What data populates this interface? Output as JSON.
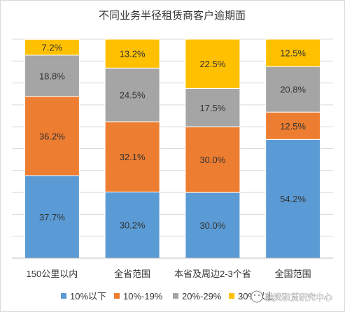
{
  "chart_data": {
    "type": "bar",
    "stacked": true,
    "title": "不同业务半径租赁商客户逾期面",
    "categories": [
      "150公里以内",
      "全省范围",
      "本省及周边2-3个省",
      "全国范围"
    ],
    "series": [
      {
        "name": "10%以下",
        "color": "#5b9bd5",
        "values": [
          37.7,
          30.2,
          30.0,
          54.2
        ]
      },
      {
        "name": "10%-19%",
        "color": "#ed7d31",
        "values": [
          36.2,
          32.1,
          30.0,
          12.5
        ]
      },
      {
        "name": "20%-29%",
        "color": "#a5a5a5",
        "values": [
          18.8,
          24.5,
          17.5,
          20.8
        ]
      },
      {
        "name": "30%以上",
        "color": "#ffc000",
        "values": [
          7.2,
          13.2,
          22.5,
          12.5
        ]
      }
    ],
    "ylim": [
      0,
      100
    ],
    "grid": true,
    "legend": "bottom",
    "value_suffix": "%"
  },
  "watermark": {
    "icon": "wechat-icon",
    "text": "融资租赁研究中心"
  }
}
